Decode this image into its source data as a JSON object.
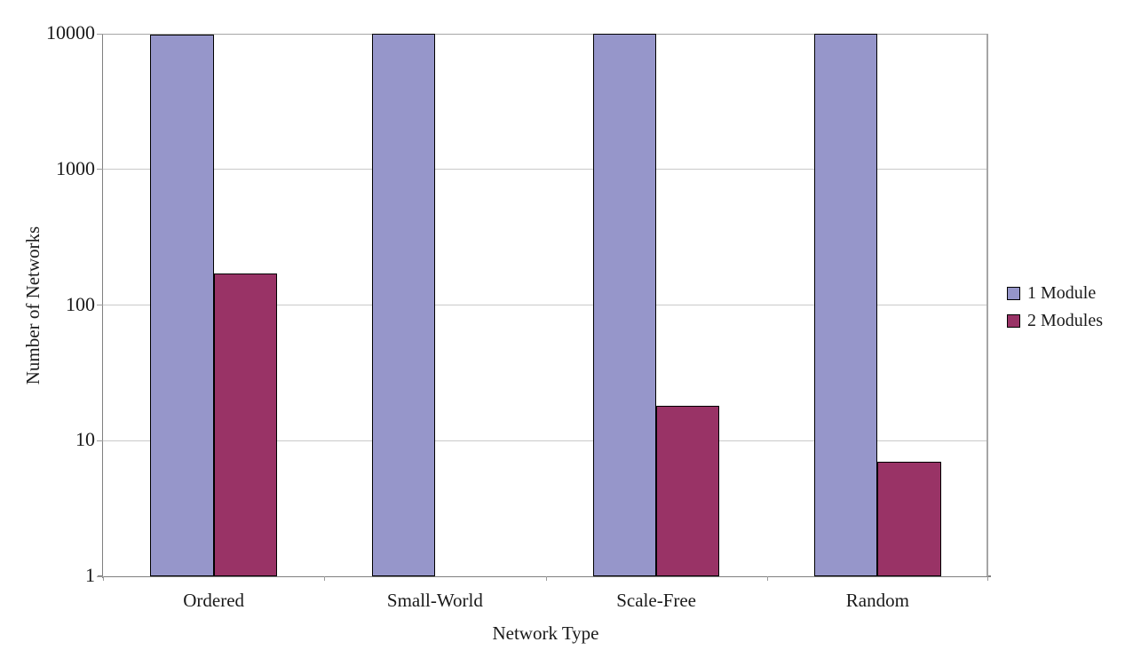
{
  "chart_data": {
    "type": "bar",
    "title": "",
    "xlabel": "Network Type",
    "ylabel": "Number of Networks",
    "categories": [
      "Ordered",
      "Small-World",
      "Scale-Free",
      "Random"
    ],
    "series": [
      {
        "name": "1 Module",
        "color": "#9696CA",
        "values": [
          9800,
          10000,
          10000,
          10000
        ]
      },
      {
        "name": "2 Modules",
        "color": "#993366",
        "values": [
          170,
          0,
          18,
          7
        ]
      }
    ],
    "y_scale": "log",
    "ylim": [
      1,
      10000
    ],
    "y_ticks": [
      10000,
      1000,
      100,
      10,
      1
    ],
    "grid": true,
    "legend_position": "right",
    "gap_width_percent": 150,
    "colors": {
      "plot_background": "#FFFFFF",
      "gridline": "#C9C9C9",
      "axis_line": "#808080",
      "plot_border": "#A6A6A6",
      "bar_border": "#000000",
      "text": "#1A1A1A"
    }
  }
}
